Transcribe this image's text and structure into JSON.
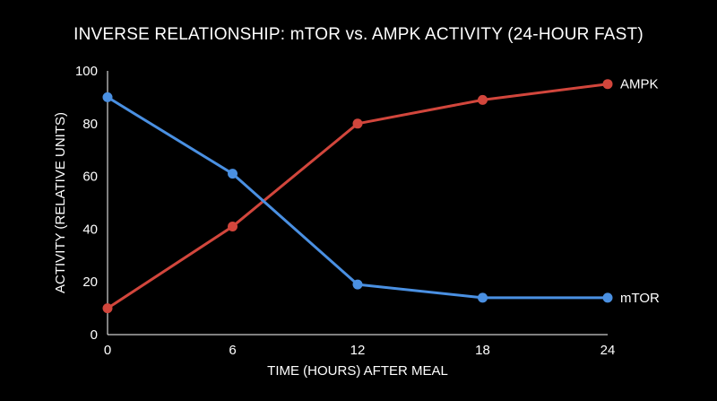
{
  "chart_data": {
    "type": "line",
    "title": "INVERSE RELATIONSHIP: mTOR vs. AMPK ACTIVITY (24-HOUR FAST)",
    "xlabel": "TIME (HOURS) AFTER MEAL",
    "ylabel": "ACTIVITY (RELATIVE UNITS)",
    "x": [
      0,
      6,
      12,
      18,
      24
    ],
    "xticks": [
      "0",
      "6",
      "12",
      "18",
      "24"
    ],
    "yticks": [
      "0",
      "20",
      "40",
      "60",
      "80",
      "100"
    ],
    "xlim": [
      0,
      24
    ],
    "ylim": [
      0,
      100
    ],
    "grid": false,
    "legend": "inline-right",
    "series": [
      {
        "name": "AMPK",
        "color": "#d2463c",
        "values": [
          10,
          41,
          80,
          89,
          95
        ]
      },
      {
        "name": "mTOR",
        "color": "#4a90e2",
        "values": [
          90,
          61,
          19,
          14,
          14
        ]
      }
    ]
  }
}
